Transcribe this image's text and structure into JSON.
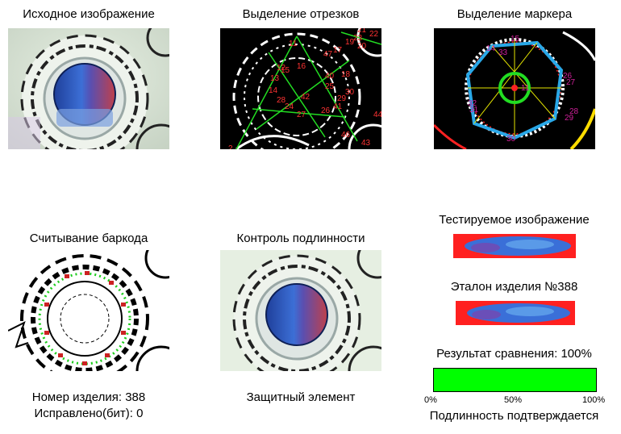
{
  "panels": {
    "original": {
      "title": "Исходное изображение"
    },
    "segments": {
      "title": "Выделение отрезков"
    },
    "marker": {
      "title": "Выделение маркера"
    },
    "barcode": {
      "title": "Считывание баркода"
    },
    "authenticity": {
      "title": "Контроль подлинности",
      "caption": "Защитный элемент"
    }
  },
  "barcode_info": {
    "item_number": "Номер изделия: 388",
    "corrected_bits": "Исправлено(бит): 0"
  },
  "comparison": {
    "tested_label": "Тестируемое изображение",
    "reference_label": "Эталон изделия №388",
    "result_label": "Результат сравнения: 100%",
    "result_fraction": 1.0,
    "scale": [
      "0%",
      "50%",
      "100%"
    ],
    "verdict": "Подлинность подтверждается"
  },
  "segment_labels": [
    "2",
    "11",
    "12",
    "13",
    "14",
    "15",
    "16",
    "17",
    "18",
    "19",
    "20",
    "21",
    "22",
    "23",
    "24",
    "25",
    "26",
    "27",
    "28",
    "29",
    "30",
    "40",
    "41",
    "42",
    "43",
    "44",
    "46",
    "47"
  ],
  "marker_labels": [
    "11",
    "14",
    "15",
    "26",
    "27",
    "28",
    "29",
    "30",
    "31",
    "32",
    "33"
  ],
  "colors": {
    "progress": "#00ff00",
    "strip_red": "#ff0000",
    "strip_blue": "#3a6fd8"
  }
}
